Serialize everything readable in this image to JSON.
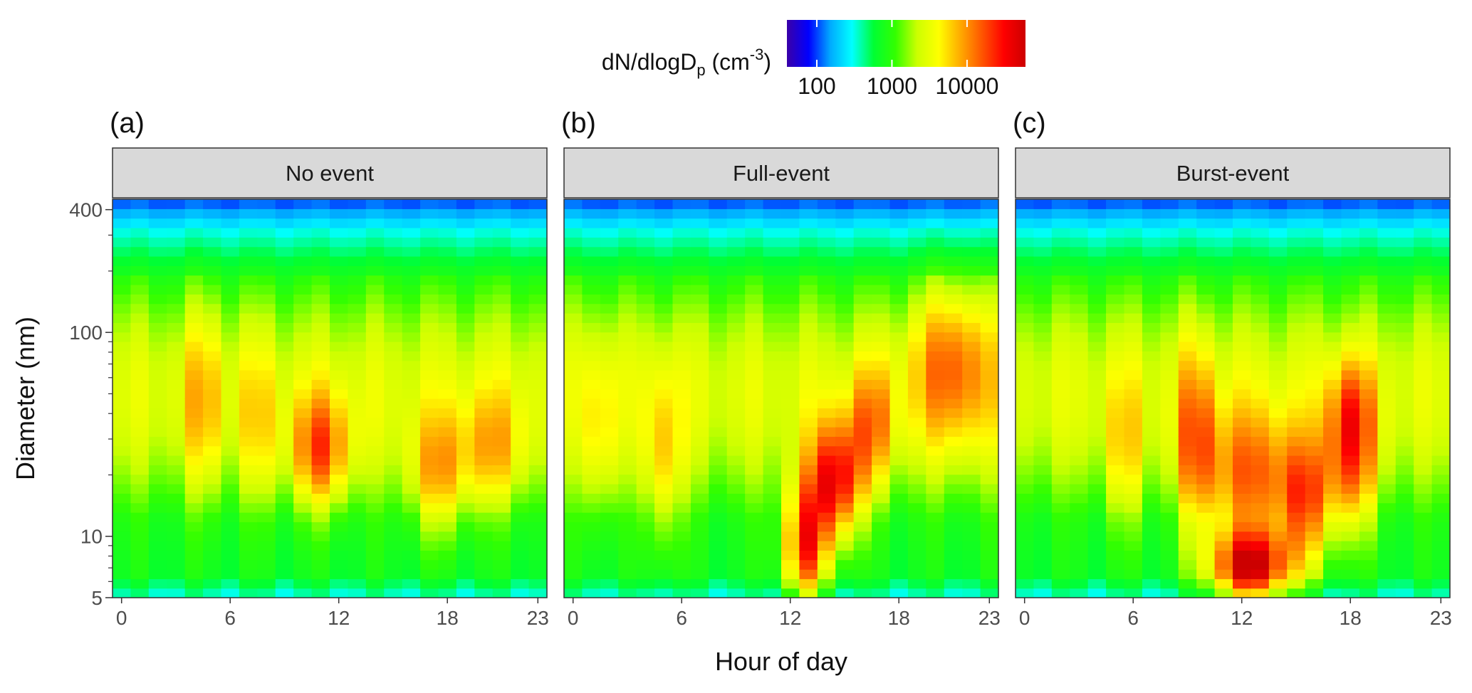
{
  "chart_data": {
    "type": "heatmap",
    "xlabel": "Hour of day",
    "ylabel": "Diameter (nm)",
    "x_ticks": [
      0,
      6,
      12,
      18,
      23
    ],
    "y_ticks": [
      5,
      10,
      100,
      400
    ],
    "y_scale": "log",
    "x_range": [
      0,
      23
    ],
    "y_range": [
      5,
      450
    ],
    "grid": false,
    "colorbar": {
      "title_main": "dN/dlogD",
      "title_sub": "p",
      "title_unit": "(cm",
      "title_sup": "-3",
      "title_close": ")",
      "scale": "log",
      "range": [
        40,
        60000
      ],
      "tick_labels": [
        "100",
        "1000",
        "10000"
      ],
      "tick_values": [
        100,
        1000,
        10000
      ],
      "placement": "top-center",
      "colors": [
        "#3a00a8",
        "#0000ff",
        "#00aaff",
        "#00ffff",
        "#00ff33",
        "#33ff00",
        "#ccff00",
        "#ffff00",
        "#ffaa00",
        "#ff5500",
        "#ff0000",
        "#cc0000"
      ]
    },
    "panels": [
      {
        "tag": "(a)",
        "title": "No event",
        "hotspots": [
          {
            "hour": 4.5,
            "diam": 45,
            "dh": 1.0,
            "dl": 0.45,
            "amp": 0.16
          },
          {
            "hour": 7.5,
            "diam": 35,
            "dh": 1.0,
            "dl": 0.4,
            "amp": 0.12
          },
          {
            "hour": 11,
            "diam": 26,
            "dh": 1.6,
            "dl": 0.28,
            "amp": 0.3
          },
          {
            "hour": 17.5,
            "diam": 20,
            "dh": 1.6,
            "dl": 0.3,
            "amp": 0.22
          },
          {
            "hour": 20.5,
            "diam": 26,
            "dh": 1.8,
            "dl": 0.3,
            "amp": 0.18
          }
        ]
      },
      {
        "tag": "(b)",
        "title": "Full-event",
        "hotspots": [
          {
            "hour": 1.5,
            "diam": 30,
            "dh": 0.8,
            "dl": 0.45,
            "amp": 0.14
          },
          {
            "hour": 5,
            "diam": 22,
            "dh": 1.0,
            "dl": 0.45,
            "amp": 0.18
          },
          {
            "hour": 12.8,
            "diam": 9,
            "dh": 1.2,
            "dl": 0.3,
            "amp": 0.45
          },
          {
            "hour": 14.5,
            "diam": 18,
            "dh": 1.4,
            "dl": 0.3,
            "amp": 0.45
          },
          {
            "hour": 16.5,
            "diam": 35,
            "dh": 1.2,
            "dl": 0.3,
            "amp": 0.22
          },
          {
            "hour": 21,
            "diam": 70,
            "dh": 2.2,
            "dl": 0.4,
            "amp": 0.25
          }
        ]
      },
      {
        "tag": "(c)",
        "title": "Burst-event",
        "hotspots": [
          {
            "hour": 5.5,
            "diam": 25,
            "dh": 1.0,
            "dl": 0.4,
            "amp": 0.15
          },
          {
            "hour": 9.5,
            "diam": 30,
            "dh": 1.0,
            "dl": 0.45,
            "amp": 0.25
          },
          {
            "hour": 12.5,
            "diam": 7,
            "dh": 2.2,
            "dl": 0.18,
            "amp": 0.55
          },
          {
            "hour": 12.5,
            "diam": 18,
            "dh": 2.8,
            "dl": 0.35,
            "amp": 0.3
          },
          {
            "hour": 15.5,
            "diam": 14,
            "dh": 1.4,
            "dl": 0.3,
            "amp": 0.3
          },
          {
            "hour": 18,
            "diam": 22,
            "dh": 1.4,
            "dl": 0.35,
            "amp": 0.3
          },
          {
            "hour": 18,
            "diam": 45,
            "dh": 1.2,
            "dl": 0.25,
            "amp": 0.18
          }
        ]
      }
    ]
  }
}
